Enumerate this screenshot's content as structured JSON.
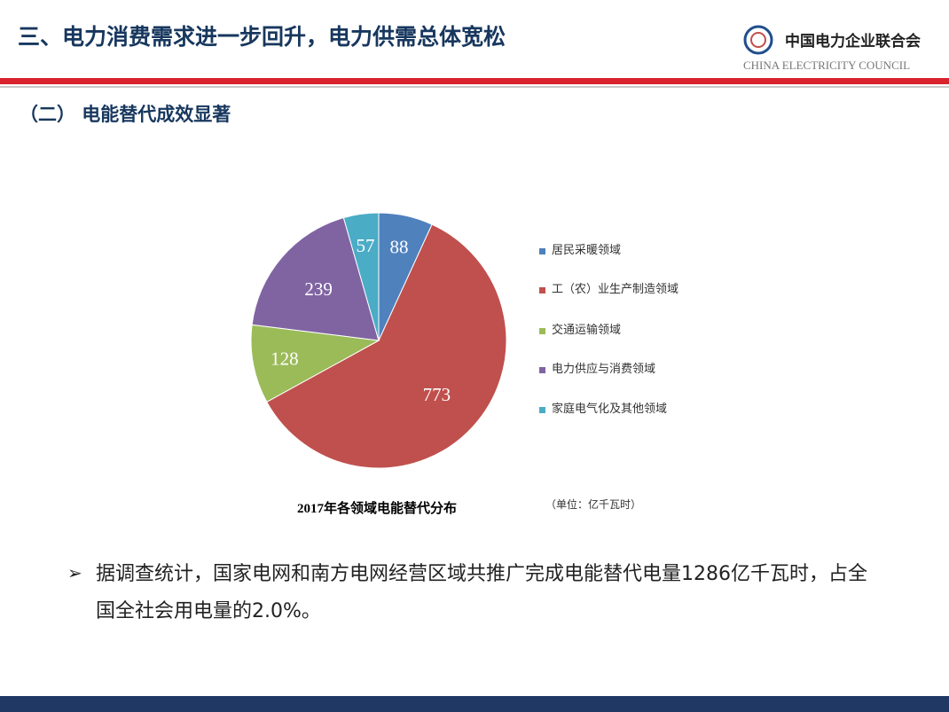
{
  "header": {
    "title": "三、电力消费需求进一步回升，电力供需总体宽松",
    "org_name": "中国电力企业联合会",
    "org_name_en": "CHINA ELECTRICITY COUNCIL"
  },
  "section": {
    "title": "（二） 电能替代成效显著"
  },
  "chart_data": {
    "type": "pie",
    "title": "2017年各领域电能替代分布",
    "unit_note": "（单位：亿千瓦时）",
    "categories": [
      "居民采暖领域",
      "工（农）业生产制造领域",
      "交通运输领域",
      "电力供应与消费领域",
      "家庭电气化及其他领域"
    ],
    "values": [
      88,
      773,
      128,
      239,
      57
    ],
    "colors": [
      "#4f81bd",
      "#c0504d",
      "#9bbb59",
      "#8064a2",
      "#4bacc6"
    ],
    "legend": "right"
  },
  "bullet": {
    "text": "据调查统计，国家电网和南方电网经营区域共推广完成电能替代电量1286亿千瓦时，占全国全社会用电量的2.0%。"
  }
}
